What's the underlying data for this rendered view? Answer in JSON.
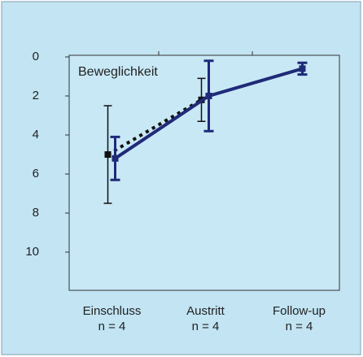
{
  "chart_data": {
    "type": "line",
    "annotation": "Beweglichkeit",
    "categories": [
      "Einschluss",
      "Austritt",
      "Follow-up"
    ],
    "category_notes": [
      "n = 4",
      "n = 4",
      "n = 4"
    ],
    "series": [
      {
        "color": "#111111",
        "style": "dotted",
        "values": [
          5.0,
          2.2,
          null
        ],
        "errors": [
          2.5,
          1.1,
          null
        ]
      },
      {
        "color": "#1f2a78",
        "style": "solid",
        "values": [
          5.2,
          2.0,
          0.6
        ],
        "errors": [
          1.1,
          1.8,
          0.3
        ]
      }
    ],
    "ylim": [
      0,
      12
    ],
    "y_inverted": true,
    "yticks": [
      0,
      2,
      4,
      6,
      8,
      10
    ]
  }
}
